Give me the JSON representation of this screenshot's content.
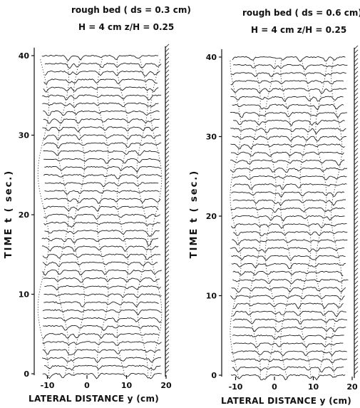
{
  "chart_data": [
    {
      "type": "line",
      "title_line1": "rough bed ( ds = 0.3 cm)",
      "title_line2": "H = 4 cm   z/H = 0.25",
      "xlabel": "LATERAL  DISTANCE   y (cm)",
      "ylabel": "TIME    t ( sec.)",
      "xlim": [
        -13,
        20
      ],
      "ylim": [
        0,
        41
      ],
      "xticks": [
        -10,
        0,
        10,
        20
      ],
      "yticks": [
        0,
        10,
        20,
        30,
        40
      ],
      "xtick_labels": [
        "-10",
        "0",
        "10",
        "20"
      ],
      "ytick_labels": [
        "0",
        "10",
        "20",
        "30",
        "40"
      ],
      "series_count": 41,
      "time_step_sec": 1.0,
      "y_range_cm": [
        -11,
        18.5
      ],
      "right_boundary": "hatched wall"
    },
    {
      "type": "line",
      "title_line1": "rough bed ( ds = 0.6 cm)",
      "title_line2": "H = 4 cm   z/H = 0.25",
      "xlabel": "LATERAL  DISTANCE   y (cm)",
      "ylabel": "TIME    t ( sec.)",
      "xlim": [
        -13,
        20
      ],
      "ylim": [
        0,
        41
      ],
      "xticks": [
        -10,
        0,
        10,
        20
      ],
      "yticks": [
        0,
        10,
        20,
        30,
        40
      ],
      "xtick_labels": [
        "-10",
        "0",
        "10",
        "20"
      ],
      "ytick_labels": [
        "0",
        "10",
        "20",
        "30",
        "40"
      ],
      "series_count": 41,
      "time_step_sec": 1.0,
      "y_range_cm": [
        -11,
        18.5
      ],
      "right_boundary": "hatched wall"
    }
  ]
}
